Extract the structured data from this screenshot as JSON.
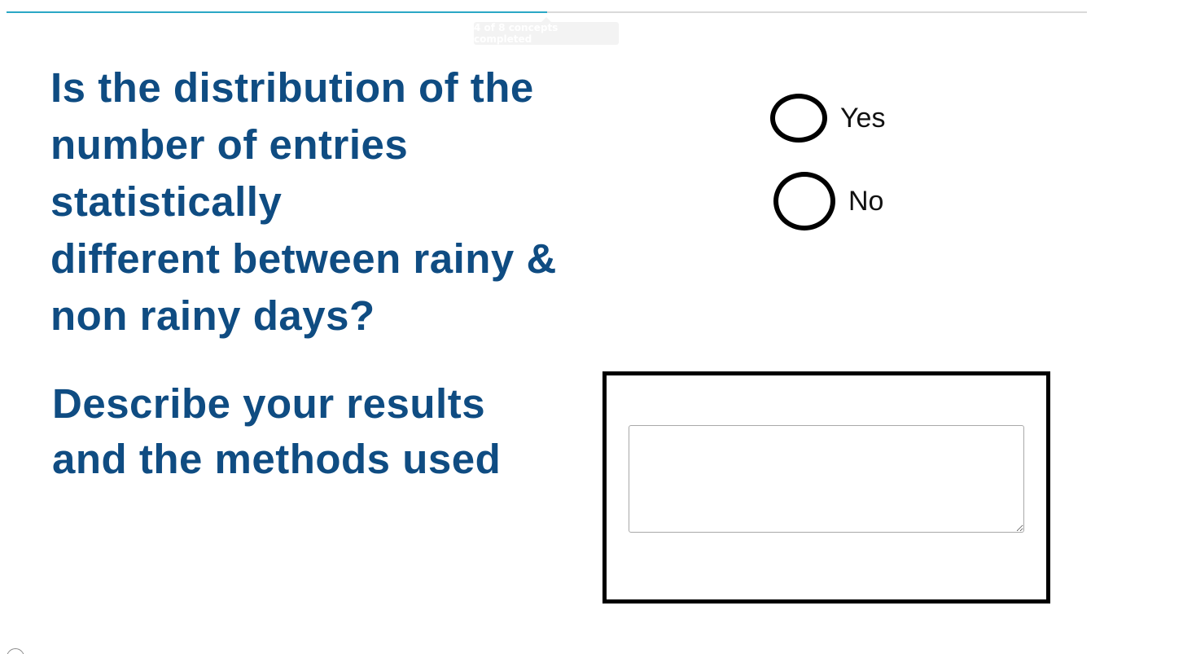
{
  "progress": {
    "fraction": 0.5,
    "tooltip": "4 of 8 concepts completed"
  },
  "question": {
    "line1": "Is the distribution of the",
    "line2": "number of entries statistically",
    "line3": "different between rainy &",
    "line4": "non rainy days?"
  },
  "options": [
    {
      "label": "Yes",
      "selected": false
    },
    {
      "label": "No",
      "selected": false
    }
  ],
  "describe": {
    "line1": "Describe your results",
    "line2": "and the methods used"
  },
  "answer": {
    "value": "",
    "placeholder": ""
  },
  "colors": {
    "question_text": "#0f4c82",
    "progress_fill": "#2aa7c5"
  }
}
